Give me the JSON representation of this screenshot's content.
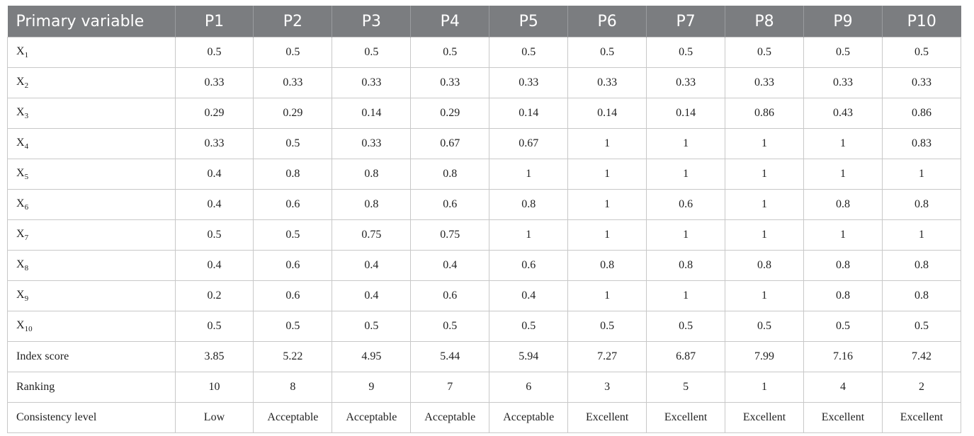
{
  "table": {
    "header": [
      "Primary variable",
      "P1",
      "P2",
      "P3",
      "P4",
      "P5",
      "P6",
      "P7",
      "P8",
      "P9",
      "P10"
    ],
    "rows": [
      {
        "label": "X",
        "sub": "1",
        "cells": [
          0.5,
          0.5,
          0.5,
          0.5,
          0.5,
          0.5,
          0.5,
          0.5,
          0.5,
          0.5
        ]
      },
      {
        "label": "X",
        "sub": "2",
        "cells": [
          0.33,
          0.33,
          0.33,
          0.33,
          0.33,
          0.33,
          0.33,
          0.33,
          0.33,
          0.33
        ]
      },
      {
        "label": "X",
        "sub": "3",
        "cells": [
          0.29,
          0.29,
          0.14,
          0.29,
          0.14,
          0.14,
          0.14,
          0.86,
          0.43,
          0.86
        ]
      },
      {
        "label": "X",
        "sub": "4",
        "cells": [
          0.33,
          0.5,
          0.33,
          0.67,
          0.67,
          1,
          1,
          1,
          1,
          0.83
        ]
      },
      {
        "label": "X",
        "sub": "5",
        "cells": [
          0.4,
          0.8,
          0.8,
          0.8,
          1,
          1,
          1,
          1,
          1,
          1
        ]
      },
      {
        "label": "X",
        "sub": "6",
        "cells": [
          0.4,
          0.6,
          0.8,
          0.6,
          0.8,
          1,
          0.6,
          1,
          0.8,
          0.8
        ]
      },
      {
        "label": "X",
        "sub": "7",
        "cells": [
          0.5,
          0.5,
          0.75,
          0.75,
          1,
          1,
          1,
          1,
          1,
          1
        ]
      },
      {
        "label": "X",
        "sub": "8",
        "cells": [
          0.4,
          0.6,
          0.4,
          0.4,
          0.6,
          0.8,
          0.8,
          0.8,
          0.8,
          0.8
        ]
      },
      {
        "label": "X",
        "sub": "9",
        "cells": [
          0.2,
          0.6,
          0.4,
          0.6,
          0.4,
          1,
          1,
          1,
          0.8,
          0.8
        ]
      },
      {
        "label": "X",
        "sub": "10",
        "cells": [
          0.5,
          0.5,
          0.5,
          0.5,
          0.5,
          0.5,
          0.5,
          0.5,
          0.5,
          0.5
        ]
      },
      {
        "label": "Index score",
        "cells": [
          3.85,
          5.22,
          4.95,
          5.44,
          5.94,
          7.27,
          6.87,
          7.99,
          7.16,
          7.42
        ]
      },
      {
        "label": "Ranking",
        "cells": [
          10,
          8,
          9,
          7,
          6,
          3,
          5,
          1,
          4,
          2
        ]
      },
      {
        "label": "Consistency level",
        "cells": [
          "Low",
          "Acceptable",
          "Acceptable",
          "Acceptable",
          "Acceptable",
          "Excellent",
          "Excellent",
          "Excellent",
          "Excellent",
          "Excellent"
        ]
      }
    ]
  }
}
